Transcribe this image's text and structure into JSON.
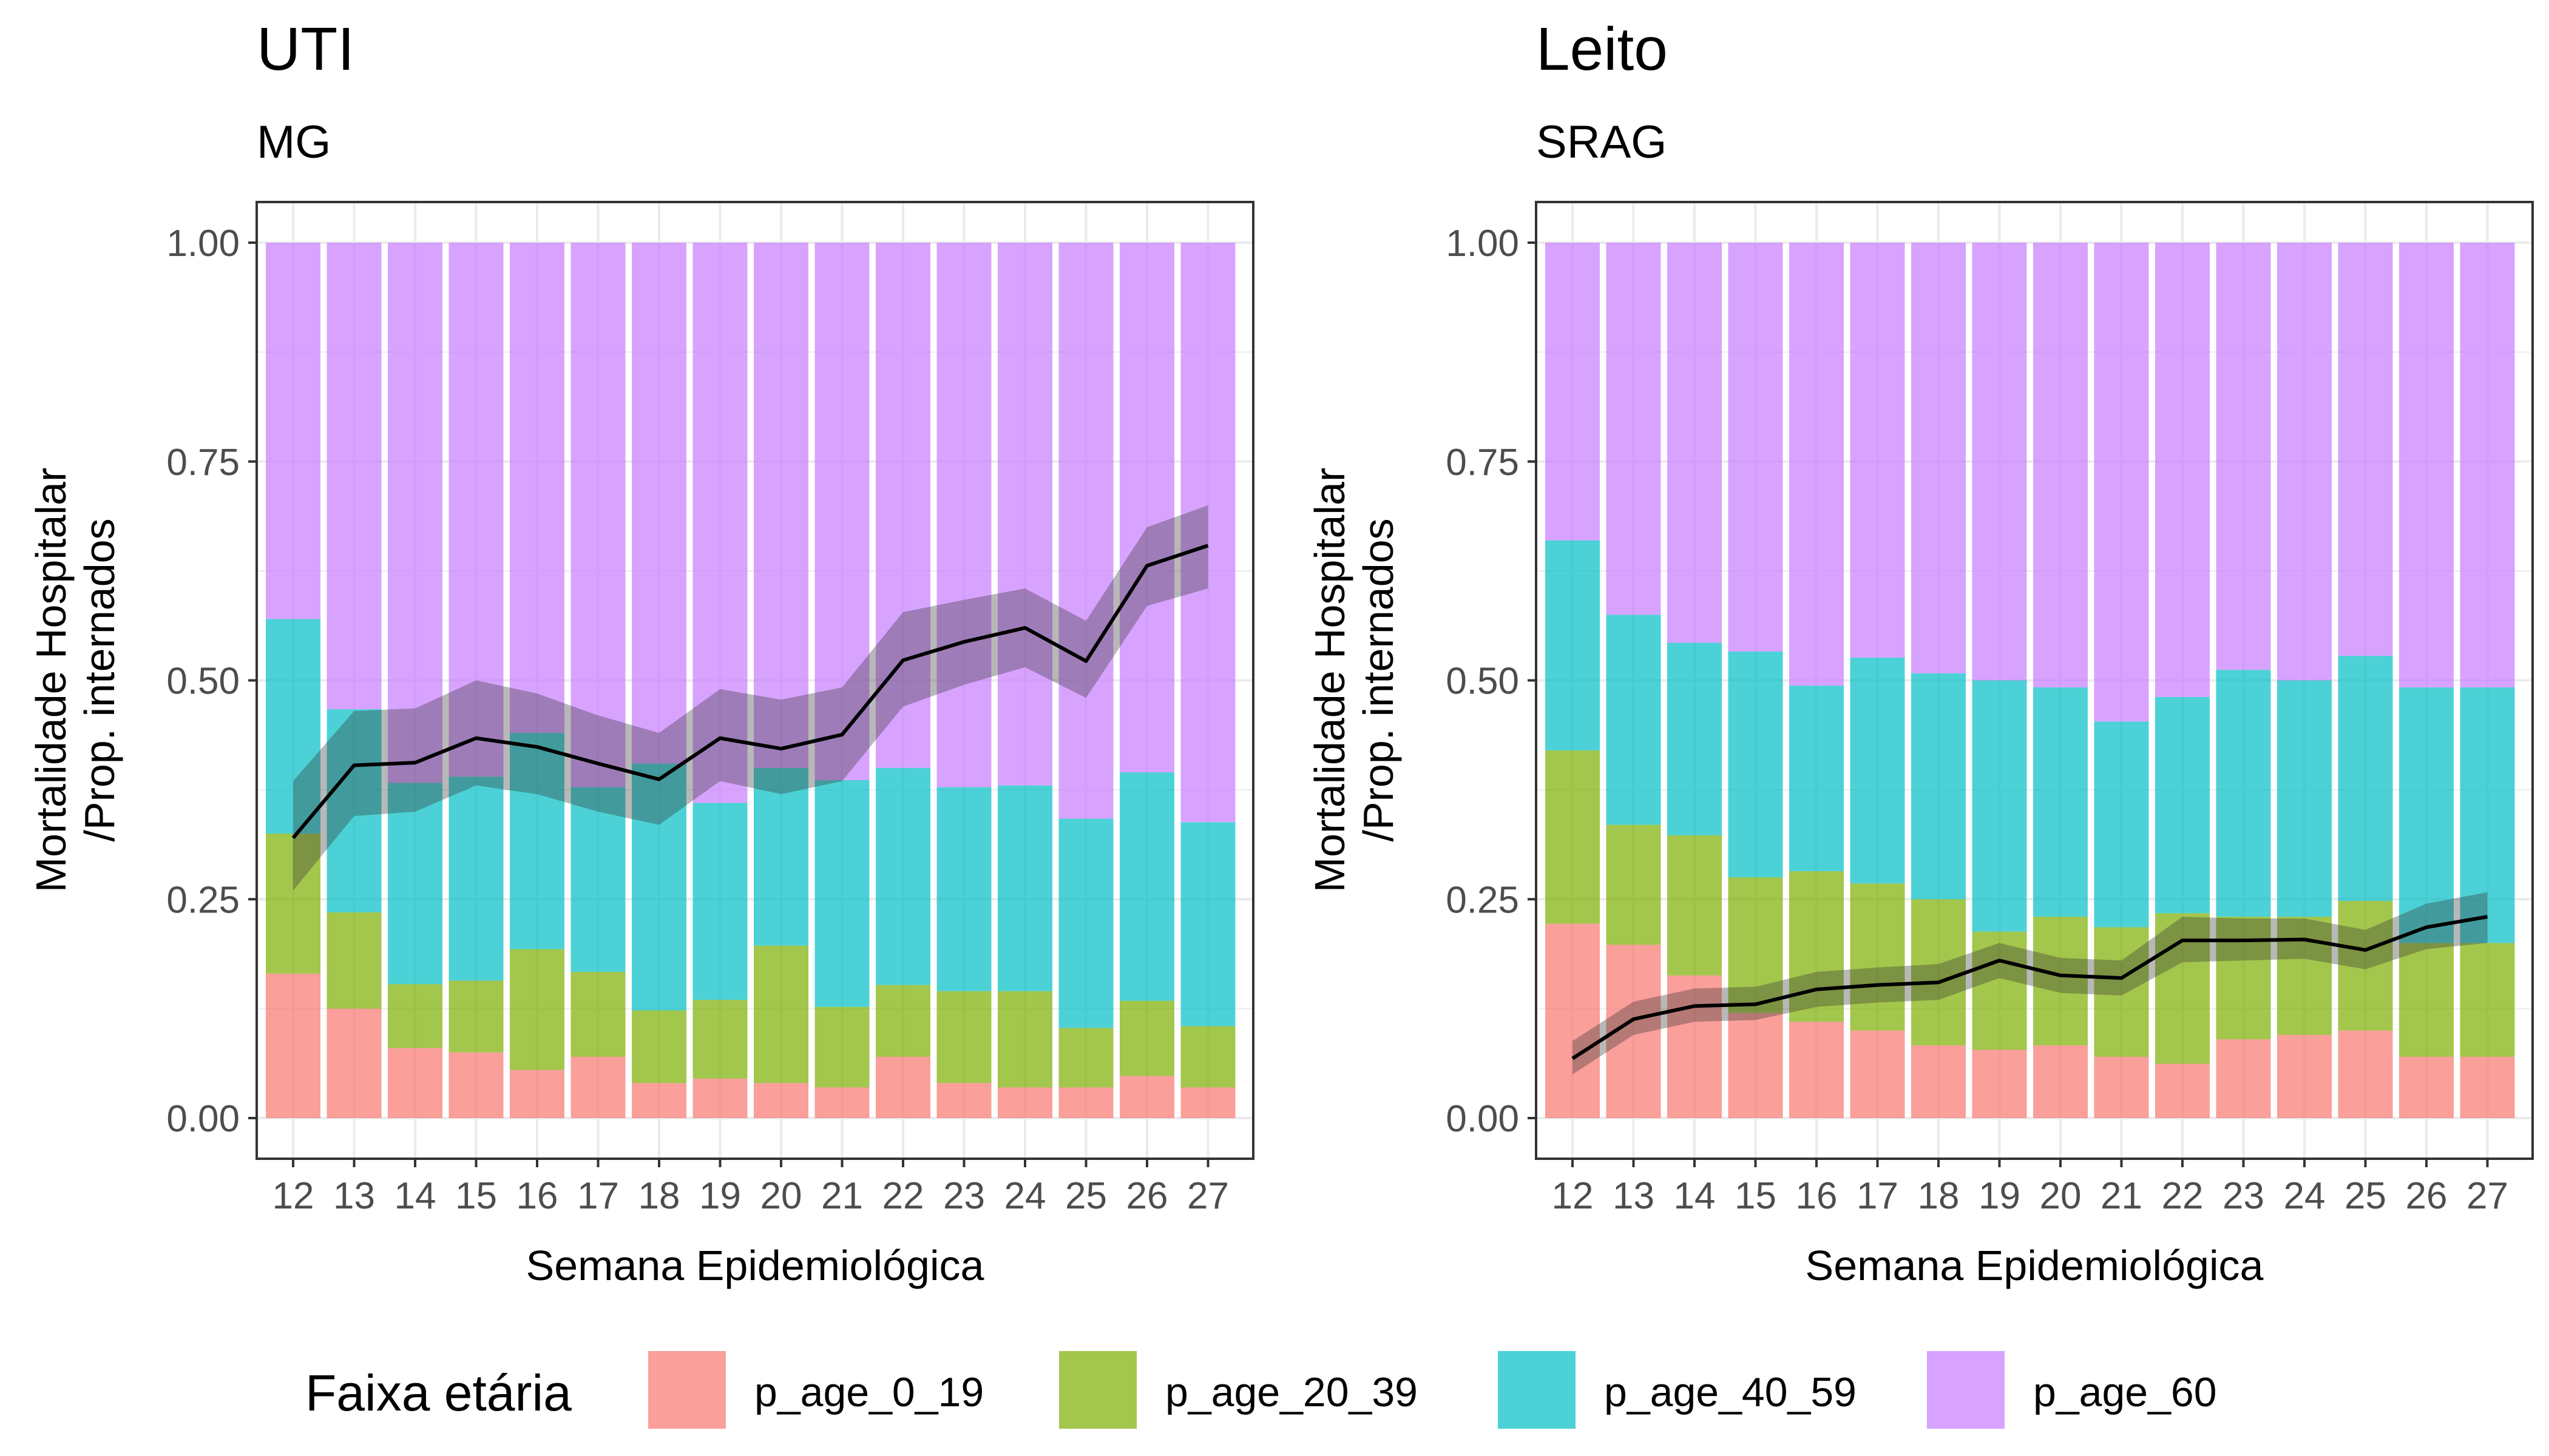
{
  "legend": {
    "title": "Faixa etária",
    "position": "bottom",
    "items": [
      {
        "label": "p_age_0_19",
        "color": "#F8766D"
      },
      {
        "label": "p_age_20_39",
        "color": "#7CAE00"
      },
      {
        "label": "p_age_40_59",
        "color": "#00BFC4"
      },
      {
        "label": "p_age_60",
        "color": "#C77CFF"
      }
    ]
  },
  "chart_data": [
    {
      "type": "bar",
      "stacked": true,
      "title": "UTI",
      "subtitle": "MG",
      "xlabel": "Semana Epidemiológica",
      "ylabel": [
        "Mortalidade Hospitalar",
        "/Prop. internados"
      ],
      "ylim": [
        0,
        1
      ],
      "yticks": [
        "0.00",
        "0.25",
        "0.50",
        "0.75",
        "1.00"
      ],
      "grid": true,
      "categories": [
        "12",
        "13",
        "14",
        "15",
        "16",
        "17",
        "18",
        "19",
        "20",
        "21",
        "22",
        "23",
        "24",
        "25",
        "26",
        "27"
      ],
      "series": [
        {
          "name": "p_age_0_19",
          "values": [
            0.165,
            0.125,
            0.08,
            0.075,
            0.055,
            0.07,
            0.04,
            0.045,
            0.04,
            0.035,
            0.07,
            0.04,
            0.035,
            0.035,
            0.048,
            0.035
          ]
        },
        {
          "name": "p_age_20_39",
          "values": [
            0.16,
            0.11,
            0.073,
            0.082,
            0.138,
            0.097,
            0.083,
            0.09,
            0.157,
            0.092,
            0.082,
            0.105,
            0.11,
            0.068,
            0.086,
            0.07
          ]
        },
        {
          "name": "p_age_40_59",
          "values": [
            0.245,
            0.232,
            0.23,
            0.233,
            0.247,
            0.211,
            0.282,
            0.225,
            0.203,
            0.259,
            0.248,
            0.233,
            0.235,
            0.239,
            0.261,
            0.233
          ]
        },
        {
          "name": "p_age_60",
          "values": [
            0.43,
            0.533,
            0.617,
            0.61,
            0.56,
            0.622,
            0.595,
            0.64,
            0.6,
            0.614,
            0.6,
            0.622,
            0.62,
            0.658,
            0.605,
            0.662
          ]
        }
      ],
      "mortality": {
        "values": [
          0.32,
          0.403,
          0.406,
          0.434,
          0.424,
          0.405,
          0.387,
          0.434,
          0.422,
          0.438,
          0.523,
          0.544,
          0.56,
          0.522,
          0.631,
          0.654
        ],
        "lower": [
          0.26,
          0.345,
          0.35,
          0.38,
          0.37,
          0.35,
          0.335,
          0.385,
          0.37,
          0.385,
          0.47,
          0.495,
          0.515,
          0.48,
          0.585,
          0.605
        ],
        "upper": [
          0.385,
          0.465,
          0.468,
          0.5,
          0.485,
          0.46,
          0.44,
          0.49,
          0.478,
          0.492,
          0.578,
          0.592,
          0.605,
          0.568,
          0.675,
          0.7
        ]
      }
    },
    {
      "type": "bar",
      "stacked": true,
      "title": "Leito",
      "subtitle": "SRAG",
      "xlabel": "Semana Epidemiológica",
      "ylabel": [
        "Mortalidade Hospitalar",
        "/Prop. internados"
      ],
      "ylim": [
        0,
        1
      ],
      "yticks": [
        "0.00",
        "0.25",
        "0.50",
        "0.75",
        "1.00"
      ],
      "grid": true,
      "categories": [
        "12",
        "13",
        "14",
        "15",
        "16",
        "17",
        "18",
        "19",
        "20",
        "21",
        "22",
        "23",
        "24",
        "25",
        "26",
        "27"
      ],
      "series": [
        {
          "name": "p_age_0_19",
          "values": [
            0.222,
            0.198,
            0.163,
            0.12,
            0.11,
            0.1,
            0.083,
            0.078,
            0.083,
            0.07,
            0.062,
            0.09,
            0.095,
            0.1,
            0.07,
            0.07
          ]
        },
        {
          "name": "p_age_20_39",
          "values": [
            0.198,
            0.137,
            0.16,
            0.155,
            0.172,
            0.168,
            0.167,
            0.135,
            0.147,
            0.148,
            0.172,
            0.14,
            0.135,
            0.148,
            0.13,
            0.13
          ]
        },
        {
          "name": "p_age_40_59",
          "values": [
            0.24,
            0.24,
            0.22,
            0.258,
            0.212,
            0.258,
            0.258,
            0.287,
            0.262,
            0.235,
            0.247,
            0.282,
            0.27,
            0.28,
            0.292,
            0.292
          ]
        },
        {
          "name": "p_age_60",
          "values": [
            0.34,
            0.425,
            0.457,
            0.467,
            0.506,
            0.474,
            0.492,
            0.5,
            0.508,
            0.547,
            0.519,
            0.488,
            0.5,
            0.472,
            0.508,
            0.508
          ]
        }
      ],
      "mortality": {
        "values": [
          0.068,
          0.113,
          0.128,
          0.13,
          0.147,
          0.152,
          0.155,
          0.18,
          0.163,
          0.16,
          0.203,
          0.203,
          0.204,
          0.192,
          0.218,
          0.23
        ],
        "lower": [
          0.05,
          0.095,
          0.11,
          0.112,
          0.127,
          0.132,
          0.135,
          0.16,
          0.143,
          0.14,
          0.178,
          0.18,
          0.182,
          0.17,
          0.193,
          0.2
        ],
        "upper": [
          0.088,
          0.133,
          0.148,
          0.15,
          0.167,
          0.172,
          0.176,
          0.2,
          0.183,
          0.18,
          0.23,
          0.228,
          0.228,
          0.215,
          0.245,
          0.258
        ]
      }
    }
  ]
}
